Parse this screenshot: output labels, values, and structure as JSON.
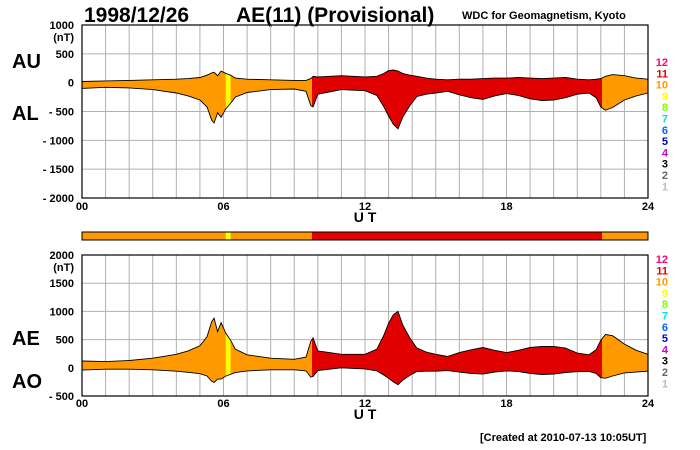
{
  "header": {
    "date": "1998/12/26",
    "title": "AE(11) (Provisional)",
    "source": "WDC for Geomagnetism, Kyoto"
  },
  "footer": {
    "created": "[Created at 2010-07-13 10:05UT]"
  },
  "station_legend": {
    "labels": [
      "12",
      "11",
      "10",
      "9",
      "8",
      "7",
      "6",
      "5",
      "4",
      "3",
      "2",
      "1"
    ],
    "colors": [
      "#ff0080",
      "#e00000",
      "#ff9900",
      "#ffff00",
      "#80ff00",
      "#00e0e0",
      "#0066ff",
      "#0000cc",
      "#cc00cc",
      "#000000",
      "#666666",
      "#bbbbbb"
    ]
  },
  "chart_data": [
    {
      "type": "area",
      "panel": "top",
      "left_labels": [
        "AU",
        "AL"
      ],
      "xlabel": "U T",
      "xticks": [
        "00",
        "06",
        "12",
        "18",
        "24"
      ],
      "xlim": [
        0,
        24
      ],
      "ylim": [
        -2000,
        1000
      ],
      "yticks": [
        "1000",
        "500",
        "0",
        "- 500",
        "- 1000",
        "- 1500",
        "- 2000"
      ],
      "yunit": "(nT)",
      "grid": true,
      "x": [
        0,
        1,
        2,
        3,
        4,
        4.5,
        5,
        5.3,
        5.5,
        5.6,
        5.75,
        5.9,
        6.1,
        6.3,
        6.5,
        7,
        8,
        9,
        9.5,
        9.7,
        9.8,
        10,
        10.5,
        11,
        11.5,
        12,
        12.5,
        12.8,
        13,
        13.2,
        13.4,
        13.6,
        13.9,
        14.2,
        14.6,
        15,
        15.5,
        16,
        16.5,
        17,
        17.5,
        18,
        18.5,
        19,
        19.5,
        20,
        20.5,
        21,
        21.5,
        21.8,
        22,
        22.2,
        22.5,
        23,
        23.5,
        24
      ],
      "series": [
        {
          "name": "AU",
          "values": [
            20,
            30,
            40,
            50,
            60,
            70,
            90,
            130,
            170,
            180,
            120,
            200,
            160,
            130,
            80,
            60,
            50,
            40,
            40,
            70,
            110,
            100,
            110,
            120,
            110,
            100,
            110,
            160,
            210,
            220,
            200,
            160,
            130,
            110,
            80,
            60,
            50,
            60,
            60,
            70,
            80,
            80,
            90,
            80,
            70,
            80,
            90,
            60,
            50,
            60,
            70,
            110,
            140,
            120,
            80,
            60
          ]
        },
        {
          "name": "AL",
          "values": [
            -100,
            -80,
            -90,
            -120,
            -180,
            -230,
            -300,
            -420,
            -650,
            -700,
            -520,
            -600,
            -450,
            -360,
            -250,
            -170,
            -120,
            -110,
            -150,
            -400,
            -420,
            -200,
            -160,
            -120,
            -130,
            -140,
            -220,
            -420,
            -580,
            -720,
            -800,
            -600,
            -400,
            -240,
            -200,
            -180,
            -150,
            -210,
            -260,
            -290,
            -230,
            -190,
            -220,
            -280,
            -310,
            -300,
            -260,
            -200,
            -180,
            -260,
            -420,
            -480,
            -430,
            -300,
            -230,
            -180
          ]
        }
      ],
      "activity_color_by_hour": [
        {
          "from": 0,
          "to": 6.1,
          "stations": "10"
        },
        {
          "from": 6.1,
          "to": 6.3,
          "stations": "9"
        },
        {
          "from": 6.3,
          "to": 9.75,
          "stations": "10"
        },
        {
          "from": 9.75,
          "to": 10.05,
          "stations": "11"
        },
        {
          "from": 10.05,
          "to": 22.05,
          "stations": "11"
        },
        {
          "from": 22.05,
          "to": 24,
          "stations": "10"
        }
      ]
    },
    {
      "type": "area",
      "panel": "bottom",
      "left_labels": [
        "AE",
        "AO"
      ],
      "xlabel": "U T",
      "xticks": [
        "00",
        "06",
        "12",
        "18",
        "24"
      ],
      "xlim": [
        0,
        24
      ],
      "ylim": [
        -500,
        2000
      ],
      "yticks": [
        "2000",
        "1500",
        "1000",
        "500",
        "0",
        "- 500"
      ],
      "yunit": "(nT)",
      "grid": true,
      "x": [
        0,
        1,
        2,
        3,
        4,
        4.5,
        5,
        5.3,
        5.5,
        5.6,
        5.75,
        5.9,
        6.1,
        6.3,
        6.5,
        7,
        8,
        9,
        9.5,
        9.7,
        9.8,
        10,
        10.5,
        11,
        11.5,
        12,
        12.5,
        12.8,
        13,
        13.2,
        13.4,
        13.6,
        13.9,
        14.2,
        14.6,
        15,
        15.5,
        16,
        16.5,
        17,
        17.5,
        18,
        18.5,
        19,
        19.5,
        20,
        20.5,
        21,
        21.5,
        21.8,
        22,
        22.2,
        22.5,
        23,
        23.5,
        24
      ],
      "series": [
        {
          "name": "AE",
          "values": [
            120,
            110,
            130,
            170,
            240,
            300,
            390,
            550,
            820,
            880,
            640,
            800,
            610,
            490,
            330,
            230,
            170,
            150,
            190,
            470,
            530,
            300,
            270,
            240,
            240,
            240,
            330,
            580,
            790,
            940,
            1000,
            760,
            530,
            350,
            280,
            240,
            200,
            270,
            320,
            360,
            310,
            270,
            310,
            360,
            380,
            380,
            350,
            260,
            230,
            320,
            490,
            590,
            570,
            420,
            310,
            240
          ]
        },
        {
          "name": "AO",
          "values": [
            -40,
            -25,
            -25,
            -35,
            -60,
            -80,
            -105,
            -145,
            -240,
            -260,
            -200,
            -200,
            -145,
            -115,
            -85,
            -55,
            -35,
            -35,
            -55,
            -165,
            -155,
            -50,
            -25,
            0,
            -10,
            -20,
            -55,
            -130,
            -185,
            -250,
            -300,
            -220,
            -135,
            -65,
            -60,
            -60,
            -50,
            -75,
            -100,
            -110,
            -75,
            -55,
            -65,
            -100,
            -120,
            -110,
            -85,
            -70,
            -65,
            -100,
            -175,
            -185,
            -145,
            -90,
            -75,
            -60
          ]
        }
      ],
      "activity_color_by_hour": [
        {
          "from": 0,
          "to": 6.1,
          "stations": "10"
        },
        {
          "from": 6.1,
          "to": 6.3,
          "stations": "9"
        },
        {
          "from": 6.3,
          "to": 9.75,
          "stations": "10"
        },
        {
          "from": 9.75,
          "to": 10.05,
          "stations": "11"
        },
        {
          "from": 10.05,
          "to": 22.05,
          "stations": "11"
        },
        {
          "from": 22.05,
          "to": 24,
          "stations": "10"
        }
      ]
    }
  ]
}
